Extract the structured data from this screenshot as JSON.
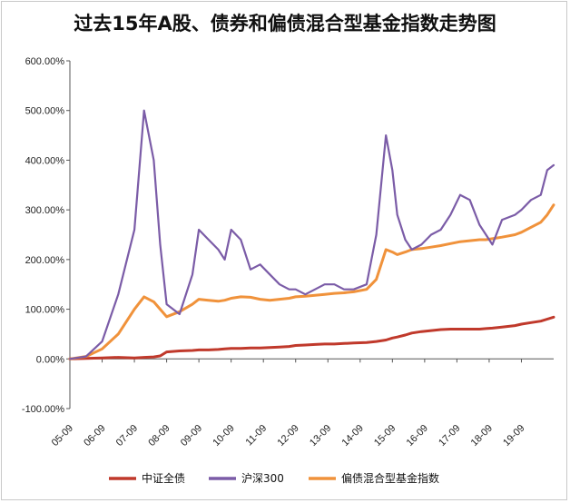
{
  "chart_data": {
    "type": "line",
    "title": "过去15年A股、债券和偏债混合型基金指数走势图",
    "xlabel": "",
    "ylabel": "",
    "ylim": [
      -100,
      600
    ],
    "y_ticks": [
      "-100.00%",
      "0.00%",
      "100.00%",
      "200.00%",
      "300.00%",
      "400.00%",
      "500.00%",
      "600.00%"
    ],
    "x_ticks": [
      "05-09",
      "06-09",
      "07-09",
      "08-09",
      "09-09",
      "10-09",
      "11-09",
      "12-09",
      "13-09",
      "14-09",
      "15-09",
      "16-09",
      "17-09",
      "18-09",
      "19-09"
    ],
    "x": [
      2005.0,
      2005.5,
      2006.0,
      2006.5,
      2007.0,
      2007.3,
      2007.6,
      2007.8,
      2008.0,
      2008.4,
      2008.8,
      2009.0,
      2009.3,
      2009.6,
      2009.8,
      2010.0,
      2010.3,
      2010.6,
      2010.9,
      2011.2,
      2011.5,
      2011.8,
      2012.0,
      2012.3,
      2012.6,
      2012.9,
      2013.2,
      2013.5,
      2013.8,
      2014.2,
      2014.5,
      2014.8,
      2015.0,
      2015.15,
      2015.4,
      2015.6,
      2015.9,
      2016.2,
      2016.5,
      2016.8,
      2017.1,
      2017.4,
      2017.7,
      2017.9,
      2018.1,
      2018.4,
      2018.8,
      2019.0,
      2019.3,
      2019.6,
      2019.8,
      2020.0
    ],
    "series": [
      {
        "name": "中证全债",
        "color": "#c0392b",
        "values": [
          0,
          1,
          2,
          3,
          2,
          3,
          4,
          6,
          14,
          16,
          17,
          18,
          18,
          19,
          20,
          21,
          21,
          22,
          22,
          23,
          24,
          25,
          27,
          28,
          29,
          30,
          30,
          31,
          32,
          33,
          35,
          38,
          42,
          44,
          48,
          52,
          55,
          57,
          59,
          60,
          60,
          60,
          60,
          61,
          62,
          64,
          67,
          70,
          73,
          76,
          80,
          84
        ]
      },
      {
        "name": "沪深300",
        "color": "#7b5ca7",
        "values": [
          0,
          5,
          35,
          130,
          260,
          500,
          400,
          230,
          110,
          90,
          170,
          260,
          240,
          220,
          200,
          260,
          240,
          180,
          190,
          170,
          150,
          140,
          140,
          130,
          140,
          150,
          150,
          140,
          140,
          150,
          250,
          450,
          380,
          290,
          240,
          220,
          230,
          250,
          260,
          290,
          330,
          320,
          270,
          250,
          230,
          280,
          290,
          300,
          320,
          330,
          380,
          390
        ]
      },
      {
        "name": "偏债混合型基金指数",
        "color": "#f0923b",
        "values": [
          0,
          5,
          20,
          50,
          100,
          125,
          115,
          100,
          85,
          95,
          110,
          120,
          118,
          116,
          118,
          122,
          125,
          124,
          120,
          118,
          120,
          122,
          125,
          126,
          128,
          130,
          132,
          133,
          135,
          140,
          160,
          220,
          215,
          210,
          215,
          220,
          222,
          225,
          228,
          232,
          236,
          238,
          240,
          240,
          242,
          245,
          250,
          255,
          265,
          275,
          290,
          310
        ]
      }
    ],
    "legend_position": "bottom",
    "grid": false
  }
}
